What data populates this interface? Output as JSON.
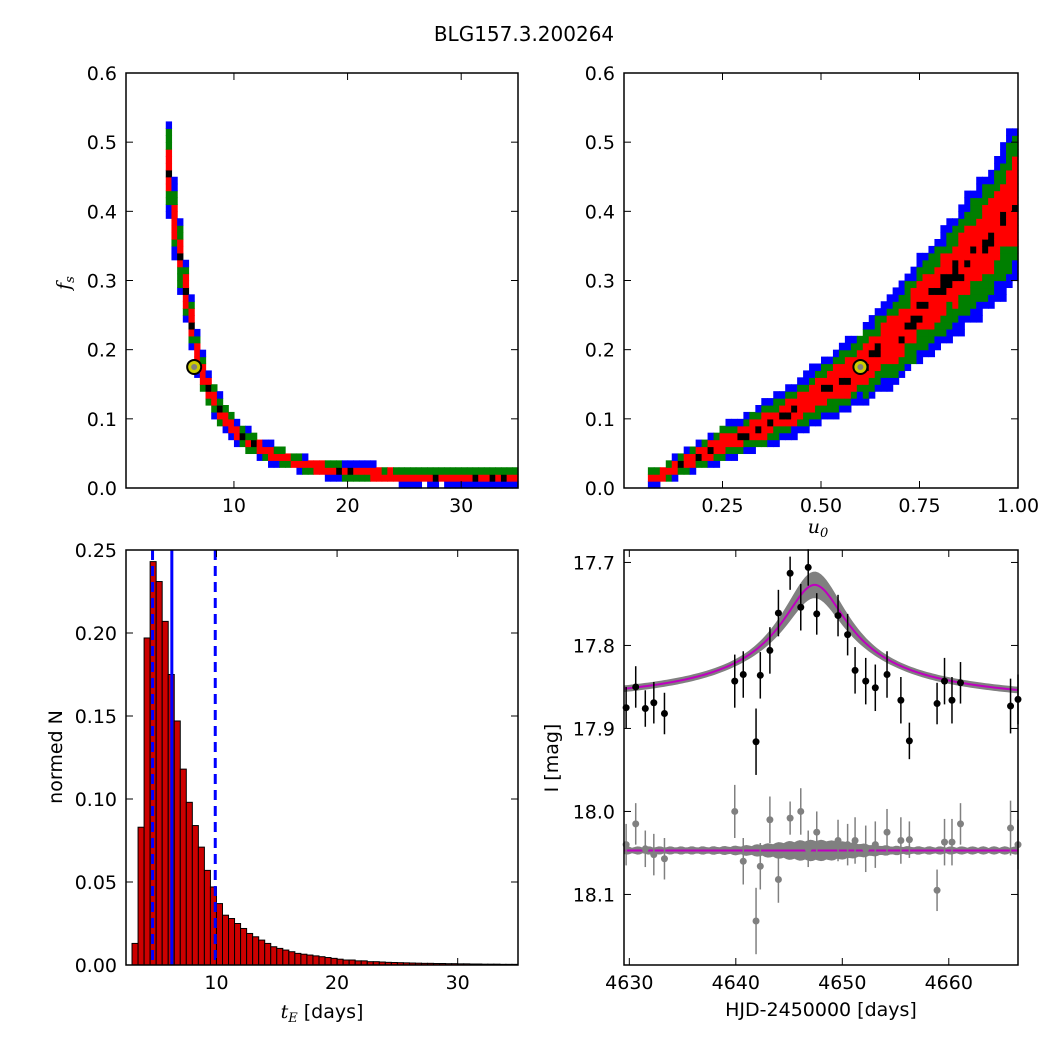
{
  "figure_title": "BLG157.3.200264",
  "colors": {
    "blue": "#0000ff",
    "green": "#007f00",
    "red": "#ff0000",
    "black": "#000000",
    "hist_bar": "#cc0000",
    "model_magenta": "#bf00bf",
    "model_band_grey": "#808080",
    "best_fit_marker": "#cccc00"
  },
  "chart_data": [
    {
      "type": "heatmap",
      "panel": "top-left",
      "xlabel": "",
      "ylabel": "f_s",
      "ylabel_display": "f",
      "ylabel_sub": "s",
      "xlim": [
        0.5,
        35
      ],
      "ylim": [
        0,
        0.6
      ],
      "xticks": [
        10,
        20,
        30
      ],
      "yticks": [
        0.0,
        0.1,
        0.2,
        0.3,
        0.4,
        0.5,
        0.6
      ],
      "contour_levels": [
        "blue",
        "green",
        "red",
        "black"
      ],
      "ridge": {
        "x": [
          4.0,
          4.5,
          5.0,
          5.5,
          6.0,
          6.5,
          7.0,
          7.5,
          8.0,
          9.0,
          10.0,
          11.0,
          12.5,
          14.0,
          16.0,
          18.0,
          20.0,
          23.0,
          26.0,
          30.0,
          35.0
        ],
        "y": [
          0.5,
          0.42,
          0.36,
          0.31,
          0.26,
          0.215,
          0.18,
          0.155,
          0.135,
          0.105,
          0.085,
          0.07,
          0.055,
          0.045,
          0.035,
          0.028,
          0.024,
          0.02,
          0.018,
          0.017,
          0.016
        ]
      },
      "best_fit": {
        "x": 6.5,
        "y": 0.175
      }
    },
    {
      "type": "heatmap",
      "panel": "top-right",
      "xlabel": "u_0",
      "xlabel_display": "u",
      "xlabel_sub": "0",
      "ylabel": "",
      "xlim": [
        0,
        1.0
      ],
      "ylim": [
        0,
        0.6
      ],
      "xticks": [
        0.25,
        0.5,
        0.75,
        1.0
      ],
      "xtick_labels": [
        "0.25",
        "0.50",
        "0.75",
        "1.00"
      ],
      "yticks": [
        0.0,
        0.1,
        0.2,
        0.3,
        0.4,
        0.5,
        0.6
      ],
      "contour_levels": [
        "blue",
        "green",
        "red",
        "black"
      ],
      "ridge": {
        "x": [
          0.06,
          0.1,
          0.15,
          0.2,
          0.25,
          0.3,
          0.35,
          0.4,
          0.45,
          0.5,
          0.55,
          0.6,
          0.65,
          0.7,
          0.75,
          0.8,
          0.85,
          0.9,
          0.95,
          1.0
        ],
        "y": [
          0.015,
          0.02,
          0.035,
          0.05,
          0.065,
          0.075,
          0.09,
          0.105,
          0.12,
          0.14,
          0.155,
          0.175,
          0.2,
          0.225,
          0.255,
          0.285,
          0.315,
          0.345,
          0.38,
          0.42
        ]
      },
      "best_fit": {
        "x": 0.6,
        "y": 0.175
      }
    },
    {
      "type": "bar",
      "panel": "bottom-left",
      "xlabel": "t_E",
      "xlabel_display": "t",
      "xlabel_sub": "E",
      "xlabel_suffix": " [days]",
      "ylabel": "normed N",
      "xlim": [
        2.5,
        35
      ],
      "ylim": [
        0,
        0.25
      ],
      "xticks": [
        10,
        20,
        30
      ],
      "yticks": [
        0.0,
        0.05,
        0.1,
        0.15,
        0.2,
        0.25
      ],
      "yticklabels": [
        "0.00",
        "0.05",
        "0.10",
        "0.15",
        "0.20",
        "0.25"
      ],
      "bin_width": 0.5,
      "bins_start": [
        3.0,
        3.5,
        4.0,
        4.5,
        5.0,
        5.5,
        6.0,
        6.5,
        7.0,
        7.5,
        8.0,
        8.5,
        9.0,
        9.5,
        10.0,
        10.5,
        11.0,
        11.5,
        12.0,
        12.5,
        13.0,
        13.5,
        14.0,
        14.5,
        15.0,
        15.5,
        16.0,
        16.5,
        17.0,
        17.5,
        18.0,
        18.5,
        19.0,
        19.5,
        20.0,
        20.5,
        21.0,
        21.5,
        22.0,
        22.5,
        23.0,
        23.5,
        24.0,
        24.5,
        25.0,
        25.5,
        26.0,
        26.5,
        27.0,
        27.5,
        28.0,
        28.5,
        29.0,
        29.5,
        30.0,
        30.5,
        31.0,
        31.5,
        32.0,
        32.5,
        33.0,
        33.5,
        34.0,
        34.5
      ],
      "values": [
        0.013,
        0.083,
        0.197,
        0.243,
        0.231,
        0.207,
        0.175,
        0.147,
        0.118,
        0.098,
        0.084,
        0.071,
        0.057,
        0.047,
        0.037,
        0.03,
        0.028,
        0.025,
        0.022,
        0.019,
        0.017,
        0.015,
        0.013,
        0.011,
        0.01,
        0.009,
        0.008,
        0.007,
        0.0065,
        0.006,
        0.0055,
        0.005,
        0.0045,
        0.004,
        0.0035,
        0.003,
        0.003,
        0.0025,
        0.0025,
        0.002,
        0.002,
        0.0018,
        0.0016,
        0.0015,
        0.0014,
        0.0013,
        0.0012,
        0.0011,
        0.001,
        0.001,
        0.0009,
        0.0009,
        0.0008,
        0.0008,
        0.0007,
        0.0007,
        0.0006,
        0.0006,
        0.0005,
        0.0005,
        0.0005,
        0.0004,
        0.0004,
        0.0004
      ],
      "median": 6.3,
      "interval_lines": [
        4.7,
        9.9
      ]
    },
    {
      "type": "scatter",
      "panel": "bottom-right",
      "xlabel": "HJD-2450000 [days]",
      "ylabel": "I [mag]",
      "xlim": [
        4629.5,
        4666.5
      ],
      "ylim": [
        18.185,
        17.685
      ],
      "xticks": [
        4630,
        4640,
        4650,
        4660
      ],
      "yticks": [
        17.7,
        17.8,
        17.9,
        18.0,
        18.1
      ],
      "model": {
        "t0": 4647.4,
        "tau": 3.8,
        "base": 17.877,
        "peak_depth": 0.15
      },
      "residual_baseline": 18.047,
      "data": {
        "t": [
          4629.7,
          4630.6,
          4631.5,
          4632.3,
          4633.3,
          4639.9,
          4640.7,
          4641.9,
          4642.3,
          4643.2,
          4644.0,
          4645.1,
          4646.1,
          4646.8,
          4647.6,
          4649.6,
          4650.5,
          4651.2,
          4652.2,
          4653.1,
          4654.2,
          4655.5,
          4656.3,
          4658.9,
          4659.6,
          4660.3,
          4661.1,
          4665.8,
          4666.5
        ],
        "mag": [
          17.875,
          17.85,
          17.876,
          17.869,
          17.882,
          17.843,
          17.835,
          17.916,
          17.836,
          17.806,
          17.761,
          17.713,
          17.754,
          17.706,
          17.762,
          17.764,
          17.787,
          17.83,
          17.843,
          17.851,
          17.835,
          17.866,
          17.915,
          17.87,
          17.843,
          17.866,
          17.845,
          17.873,
          17.865
        ],
        "err": [
          0.025,
          0.025,
          0.022,
          0.025,
          0.025,
          0.032,
          0.028,
          0.04,
          0.028,
          0.028,
          0.028,
          0.02,
          0.028,
          0.022,
          0.025,
          0.025,
          0.025,
          0.028,
          0.028,
          0.028,
          0.028,
          0.028,
          0.022,
          0.025,
          0.028,
          0.028,
          0.025,
          0.033,
          0.03
        ],
        "residual": [
          18.04,
          18.015,
          18.045,
          18.052,
          18.057,
          18.0,
          18.06,
          18.132,
          18.066,
          18.01,
          18.082,
          18.008,
          18.0,
          18.045,
          18.025,
          18.035,
          18.04,
          18.035,
          18.045,
          18.04,
          18.025,
          18.035,
          18.034,
          18.095,
          18.037,
          18.037,
          18.015,
          18.02,
          18.04
        ]
      }
    }
  ]
}
